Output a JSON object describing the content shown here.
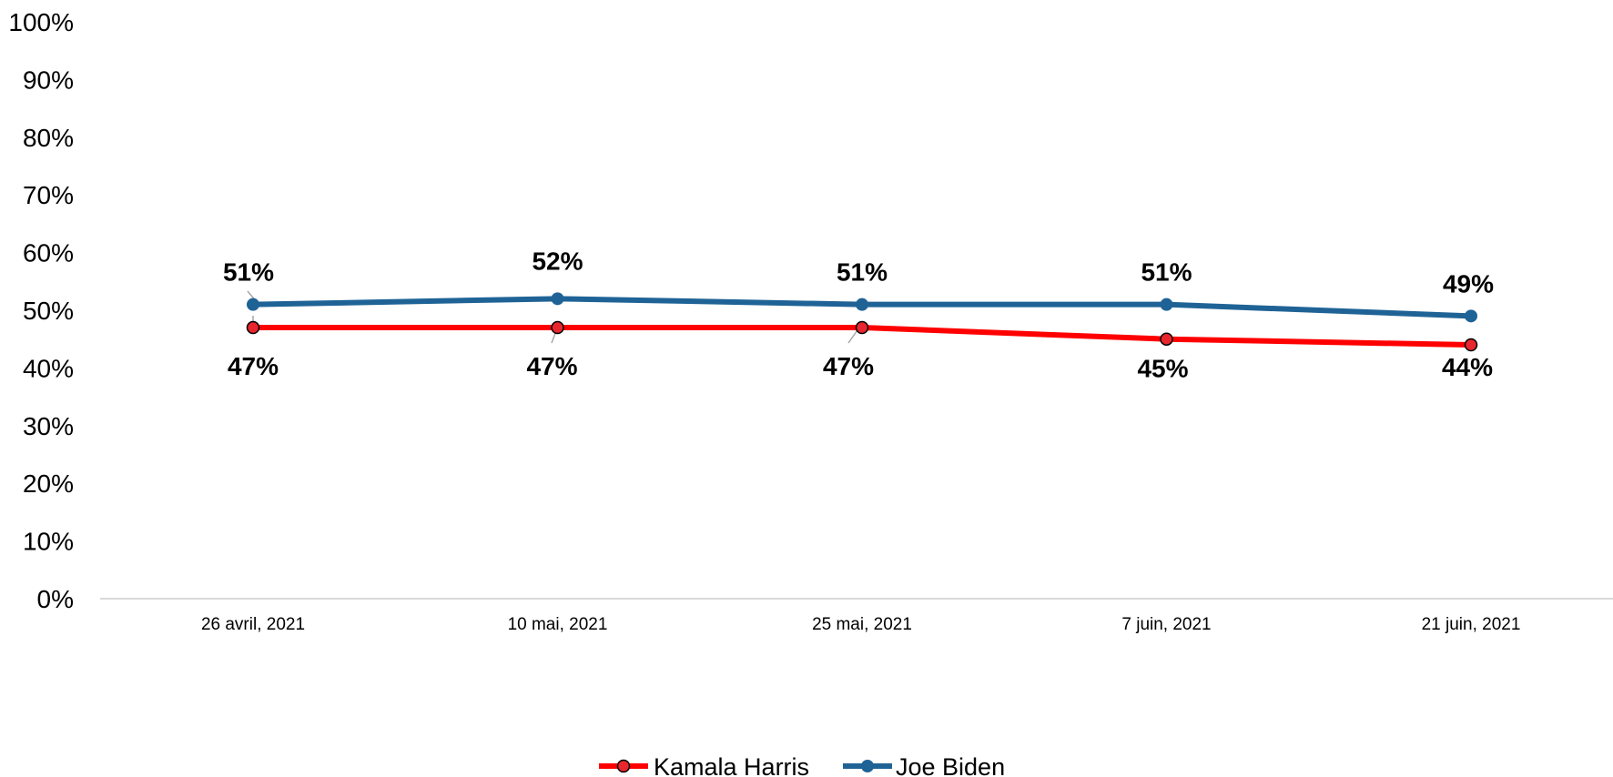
{
  "chart_data": {
    "type": "line",
    "title": "",
    "xlabel": "",
    "ylabel": "",
    "categories": [
      "26 avril, 2021",
      "10 mai, 2021",
      "25 mai, 2021",
      "7 juin, 2021",
      "21 juin, 2021"
    ],
    "y_ticks": [
      "0%",
      "10%",
      "20%",
      "30%",
      "40%",
      "50%",
      "60%",
      "70%",
      "80%",
      "90%",
      "100%"
    ],
    "ylim": [
      0,
      100
    ],
    "y_unit": "%",
    "grid": false,
    "legend_position": "bottom-center",
    "series": [
      {
        "name": "Kamala Harris",
        "values": [
          47,
          47,
          47,
          45,
          44
        ],
        "labels": [
          "47%",
          "47%",
          "47%",
          "45%",
          "44%"
        ],
        "color": "#ff0000",
        "marker_fill": "#e8262d",
        "label_placement": "below"
      },
      {
        "name": "Joe Biden",
        "values": [
          51,
          52,
          51,
          51,
          49
        ],
        "labels": [
          "51%",
          "52%",
          "51%",
          "51%",
          "49%"
        ],
        "color": "#1f6396",
        "marker_fill": "#1f6396",
        "label_placement": "above"
      }
    ],
    "axis_color": "#d9d9d9"
  }
}
